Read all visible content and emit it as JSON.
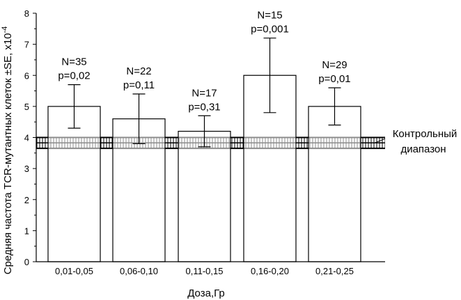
{
  "chart_data": {
    "type": "bar",
    "categories": [
      "0,01-0,05",
      "0,06-0,10",
      "0,11-0,15",
      "0,16-0,20",
      "0,21-0,25"
    ],
    "values": [
      5.0,
      4.6,
      4.2,
      6.0,
      5.0
    ],
    "error_low": [
      4.3,
      3.8,
      3.7,
      4.8,
      4.4
    ],
    "error_high": [
      5.7,
      5.4,
      4.7,
      7.2,
      5.6
    ],
    "annotations": [
      {
        "n": "N=35",
        "p": "p=0,02"
      },
      {
        "n": "N=22",
        "p": "p=0,11"
      },
      {
        "n": "N=17",
        "p": "p=0,31"
      },
      {
        "n": "N=15",
        "p": "p=0,001"
      },
      {
        "n": "N=29",
        "p": "p=0,01"
      }
    ],
    "control_range": {
      "low": 3.65,
      "high": 4.0,
      "label_line1": "Контрольный",
      "label_line2": "диапазон"
    },
    "xlabel": "Доза,Гр",
    "ylabel_main": "Средняя частота TCR-мутантных клеток ±SE, x10",
    "ylabel_exponent": "-4",
    "ylim": [
      0,
      8
    ],
    "yticks": [
      "0",
      "1",
      "2",
      "3",
      "4",
      "5",
      "6",
      "7",
      "8"
    ],
    "grid": false
  }
}
